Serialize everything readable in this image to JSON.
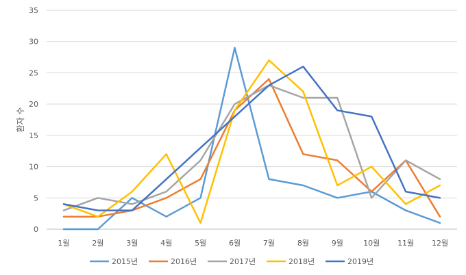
{
  "chart_data": {
    "type": "line",
    "title": "",
    "xlabel": "",
    "ylabel": "환자 수",
    "categories": [
      "1월",
      "2월",
      "3월",
      "4월",
      "5월",
      "6월",
      "7월",
      "8월",
      "9월",
      "10월",
      "11월",
      "12월"
    ],
    "ylim": [
      0,
      35
    ],
    "yticks": [
      0,
      5,
      10,
      15,
      20,
      25,
      30,
      35
    ],
    "grid": true,
    "legend_position": "bottom",
    "series": [
      {
        "name": "2015년",
        "color": "#5B9BD5",
        "values": [
          0,
          0,
          5,
          2,
          5,
          29,
          8,
          7,
          5,
          6,
          3,
          1
        ]
      },
      {
        "name": "2016년",
        "color": "#ED7D31",
        "values": [
          2,
          2,
          3,
          5,
          8,
          19,
          24,
          12,
          11,
          6,
          11,
          2
        ]
      },
      {
        "name": "2017년",
        "color": "#A5A5A5",
        "values": [
          3,
          5,
          4,
          6,
          11,
          20,
          23,
          21,
          21,
          5,
          11,
          8
        ]
      },
      {
        "name": "2018년",
        "color": "#FFC000",
        "values": [
          4,
          2,
          6,
          12,
          1,
          19,
          27,
          22,
          7,
          10,
          4,
          7
        ]
      },
      {
        "name": "2019년",
        "color": "#4472C4",
        "values": [
          4,
          3,
          3,
          8,
          13,
          18,
          23,
          26,
          19,
          18,
          6,
          5
        ]
      }
    ]
  }
}
